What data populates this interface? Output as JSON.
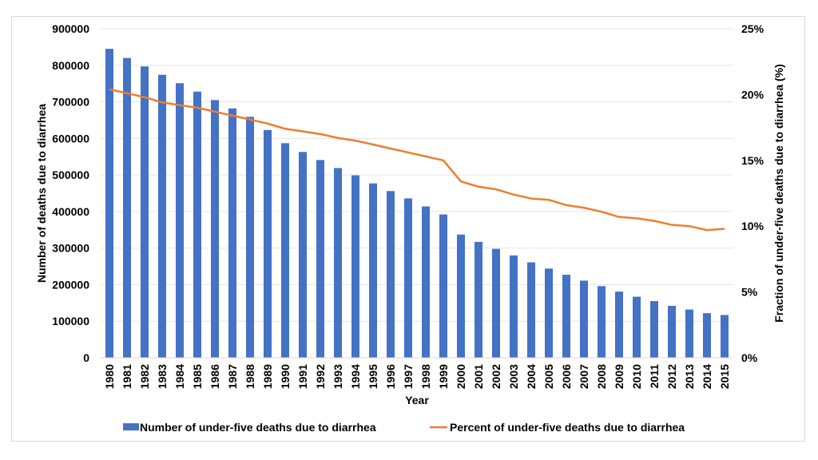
{
  "chart_data": {
    "type": "bar",
    "x": [
      "1980",
      "1981",
      "1982",
      "1983",
      "1984",
      "1985",
      "1986",
      "1987",
      "1988",
      "1989",
      "1990",
      "1991",
      "1992",
      "1993",
      "1994",
      "1995",
      "1996",
      "1997",
      "1998",
      "1999",
      "2000",
      "2001",
      "2002",
      "2003",
      "2004",
      "2005",
      "2006",
      "2007",
      "2008",
      "2009",
      "2010",
      "2011",
      "2012",
      "2013",
      "2014",
      "2015"
    ],
    "series": [
      {
        "name": "Number of under-five deaths due to diarrhea",
        "type": "bar",
        "axis": "left",
        "color": "#4472c4",
        "values": [
          845000,
          820000,
          797000,
          774000,
          751000,
          728000,
          705000,
          682000,
          659000,
          623000,
          587000,
          563000,
          541000,
          519000,
          499000,
          477000,
          456000,
          436000,
          414000,
          392000,
          337000,
          317000,
          298000,
          280000,
          261000,
          244000,
          227000,
          211000,
          196000,
          181000,
          167000,
          155000,
          142000,
          132000,
          122000,
          117000
        ]
      },
      {
        "name": "Percent of under-five deaths due to diarrhea",
        "type": "line",
        "axis": "right",
        "color": "#ed7d31",
        "values": [
          20.4,
          20.1,
          19.8,
          19.4,
          19.2,
          19.0,
          18.7,
          18.4,
          18.1,
          17.8,
          17.4,
          17.2,
          17.0,
          16.7,
          16.5,
          16.2,
          15.9,
          15.6,
          15.3,
          15.0,
          13.4,
          13.0,
          12.8,
          12.4,
          12.1,
          12.0,
          11.6,
          11.4,
          11.1,
          10.7,
          10.6,
          10.4,
          10.1,
          10.0,
          9.7,
          9.8
        ]
      }
    ],
    "xlabel": "Year",
    "ylabel": "Number of deaths due to diarrhea",
    "y2label": "Fraction of under-five deaths due to diarrhea (%)",
    "ylim": [
      0,
      900000
    ],
    "y2lim": [
      0,
      25
    ],
    "yticks": [
      "0",
      "100000",
      "200000",
      "300000",
      "400000",
      "500000",
      "600000",
      "700000",
      "800000",
      "900000"
    ],
    "y2ticks": [
      "0%",
      "5%",
      "10%",
      "15%",
      "20%",
      "25%"
    ],
    "grid": true,
    "legend": "bottom"
  }
}
